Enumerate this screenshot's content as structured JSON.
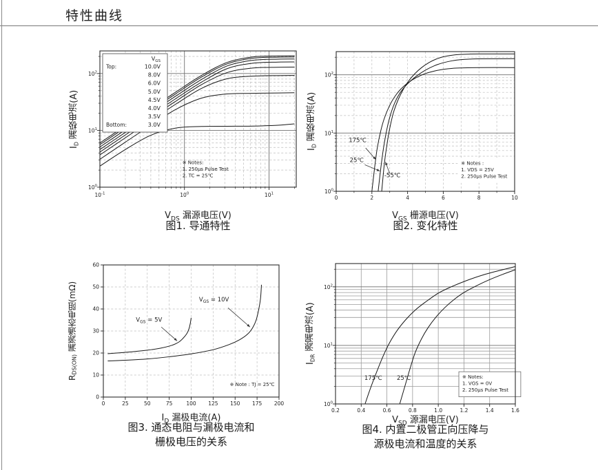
{
  "page": {
    "title": "特性曲线"
  },
  "chart_data": [
    {
      "type": "line",
      "caption1": "图1. 导通特性",
      "caption2": "",
      "xlabel_main": "V",
      "xlabel_sub": "DS",
      "xlabel_rest": " 漏源电压(V)",
      "ylabel_main": "I",
      "ylabel_sub": "D",
      "ylabel_rest": " 漏极电流(A)",
      "x": {
        "type": "log",
        "min": 0.1,
        "max": 21,
        "grid_major": "solid-dark",
        "grid_minor": "dashed"
      },
      "y": {
        "type": "log",
        "min": 1,
        "max": 250,
        "grid_major": "solid-dark",
        "grid_minor": "dashed"
      },
      "legend": {
        "title_main": "V",
        "title_sub": "GS",
        "rows": [
          {
            "prefix": "Top:",
            "value": "10.0V"
          },
          {
            "prefix": "",
            "value": "8.0V"
          },
          {
            "prefix": "",
            "value": "6.0V"
          },
          {
            "prefix": "",
            "value": "5.0V"
          },
          {
            "prefix": "",
            "value": "4.5V"
          },
          {
            "prefix": "",
            "value": "4.0V"
          },
          {
            "prefix": "",
            "value": "3.5V"
          },
          {
            "prefix": "Bottom:",
            "value": "3.0V"
          }
        ]
      },
      "notes": {
        "fx": 0.42,
        "fy": 0.8,
        "whitebg": false,
        "boxed": false,
        "lines": [
          "※ Notes:",
          "1. 250μs Pulse Test",
          "2. TC = 25℃"
        ]
      },
      "annotations": [],
      "series": [
        {
          "name": "VGS = 10.0V",
          "points": [
            [
              0.1,
              6.0
            ],
            [
              0.2,
              12
            ],
            [
              0.4,
              24
            ],
            [
              0.8,
              47.8
            ],
            [
              1.6,
              93
            ],
            [
              3.2,
              157
            ],
            [
              6.4,
              196
            ],
            [
              12.8,
              204
            ],
            [
              20,
              205
            ]
          ]
        },
        {
          "name": "VGS = 8.0V",
          "points": [
            [
              0.1,
              5.6
            ],
            [
              0.2,
              11.2
            ],
            [
              0.4,
              22.4
            ],
            [
              0.8,
              44.6
            ],
            [
              1.6,
              87
            ],
            [
              3.2,
              148
            ],
            [
              6.4,
              186
            ],
            [
              12.8,
              194
            ],
            [
              20,
              195
            ]
          ]
        },
        {
          "name": "VGS = 6.0V",
          "points": [
            [
              0.1,
              5.1
            ],
            [
              0.2,
              10.2
            ],
            [
              0.4,
              20.4
            ],
            [
              0.8,
              40.6
            ],
            [
              1.6,
              79
            ],
            [
              3.2,
              136
            ],
            [
              6.4,
              171
            ],
            [
              12.8,
              179
            ],
            [
              20,
              180
            ]
          ]
        },
        {
          "name": "VGS = 5.0V",
          "points": [
            [
              0.1,
              4.6
            ],
            [
              0.2,
              9.2
            ],
            [
              0.4,
              18.4
            ],
            [
              0.8,
              36.6
            ],
            [
              1.6,
              71
            ],
            [
              3.2,
              122
            ],
            [
              6.4,
              152
            ],
            [
              12.8,
              159
            ],
            [
              20,
              160
            ]
          ]
        },
        {
          "name": "VGS = 4.5V",
          "points": [
            [
              0.1,
              4.15
            ],
            [
              0.2,
              8.3
            ],
            [
              0.4,
              16.6
            ],
            [
              0.8,
              33
            ],
            [
              1.6,
              64
            ],
            [
              3.2,
              104
            ],
            [
              6.4,
              125
            ],
            [
              12.8,
              129
            ],
            [
              20,
              130
            ]
          ]
        },
        {
          "name": "VGS = 4.0V",
          "points": [
            [
              0.1,
              3.7
            ],
            [
              0.2,
              7.4
            ],
            [
              0.4,
              14.8
            ],
            [
              0.8,
              29.3
            ],
            [
              1.6,
              55
            ],
            [
              3.2,
              81
            ],
            [
              6.4,
              90
            ],
            [
              12.8,
              92
            ],
            [
              20,
              92.5
            ]
          ]
        },
        {
          "name": "VGS = 3.5V",
          "points": [
            [
              0.1,
              3.1
            ],
            [
              0.2,
              6.2
            ],
            [
              0.4,
              12.3
            ],
            [
              0.8,
              23.6
            ],
            [
              1.6,
              37
            ],
            [
              3.2,
              43.7
            ],
            [
              6.4,
              44.8
            ],
            [
              12.8,
              45.5
            ],
            [
              20,
              46
            ]
          ]
        },
        {
          "name": "VGS = 3.0V",
          "points": [
            [
              0.1,
              2.35
            ],
            [
              0.2,
              4.6
            ],
            [
              0.4,
              8.2
            ],
            [
              0.8,
              11
            ],
            [
              1.6,
              11.7
            ],
            [
              3.2,
              11.8
            ],
            [
              6.4,
              11.9
            ],
            [
              12.8,
              12.3
            ],
            [
              20,
              13
            ]
          ]
        }
      ]
    },
    {
      "type": "line",
      "caption1": "图2. 变化特性",
      "caption2": "",
      "xlabel_main": "V",
      "xlabel_sub": "GS",
      "xlabel_rest": " 栅源电压(V)",
      "ylabel_main": "I",
      "ylabel_sub": "D",
      "ylabel_rest": " 漏极电流(A)",
      "x": {
        "type": "linear",
        "min": 0,
        "max": 10,
        "major_step": 2,
        "minor_step": 1,
        "decimals": 0,
        "grid_major": "dashed",
        "grid_minor": "dashed"
      },
      "y": {
        "type": "log",
        "min": 1,
        "max": 250,
        "grid_major": "solid-dark",
        "grid_minor": "dashed"
      },
      "notes": {
        "fx": 0.7,
        "fy": 0.78,
        "whitebg": true,
        "boxed": false,
        "lines": [
          "※ Notes :",
          "1. VDS = 25V",
          "2. 250μs Pulse Test"
        ]
      },
      "annotations": [
        {
          "main": "175℃",
          "sub": "",
          "rest": "",
          "fx": 0.12,
          "fy": 0.648,
          "arrow": [
            0.165,
            0.69,
            0.222,
            0.773
          ]
        },
        {
          "main": "25℃",
          "sub": "",
          "rest": "",
          "fx": 0.115,
          "fy": 0.79,
          "arrow": [
            0.16,
            0.81,
            0.245,
            0.855
          ]
        },
        {
          "main": "-55℃",
          "sub": "",
          "rest": "",
          "fx": 0.315,
          "fy": 0.9,
          "arrow": [
            0.3,
            0.873,
            0.276,
            0.79
          ]
        }
      ],
      "series": [
        {
          "name": "175℃",
          "points": [
            [
              2.0,
              1
            ],
            [
              2.15,
              2.5
            ],
            [
              2.3,
              5.5
            ],
            [
              2.5,
              11
            ],
            [
              2.7,
              18
            ],
            [
              3.0,
              30
            ],
            [
              3.3,
              43
            ],
            [
              3.6,
              56
            ],
            [
              4.0,
              72
            ],
            [
              4.5,
              90
            ],
            [
              5.0,
              105
            ],
            [
              5.5,
              116
            ],
            [
              6.0,
              124
            ],
            [
              6.5,
              129
            ],
            [
              7.0,
              131
            ],
            [
              8.0,
              133
            ],
            [
              10,
              133
            ]
          ]
        },
        {
          "name": "25℃",
          "points": [
            [
              2.35,
              1
            ],
            [
              2.5,
              2.5
            ],
            [
              2.65,
              5.5
            ],
            [
              2.85,
              12
            ],
            [
              3.05,
              21
            ],
            [
              3.3,
              34
            ],
            [
              3.6,
              50
            ],
            [
              4.0,
              70
            ],
            [
              4.5,
              95
            ],
            [
              5.0,
              120
            ],
            [
              5.5,
              143
            ],
            [
              6.0,
              161
            ],
            [
              6.5,
              174
            ],
            [
              7.0,
              182
            ],
            [
              7.5,
              186
            ],
            [
              8.0,
              188
            ],
            [
              10,
              189
            ]
          ]
        },
        {
          "name": "-55℃",
          "points": [
            [
              2.55,
              1
            ],
            [
              2.7,
              3
            ],
            [
              2.85,
              6.5
            ],
            [
              3.0,
              12
            ],
            [
              3.2,
              22
            ],
            [
              3.45,
              36
            ],
            [
              3.7,
              52
            ],
            [
              4.0,
              74
            ],
            [
              4.4,
              104
            ],
            [
              4.8,
              134
            ],
            [
              5.2,
              162
            ],
            [
              5.6,
              186
            ],
            [
              6.0,
              204
            ],
            [
              6.5,
              217
            ],
            [
              7.0,
              224
            ],
            [
              7.5,
              227
            ],
            [
              8.0,
              228
            ],
            [
              10,
              228
            ]
          ]
        }
      ]
    },
    {
      "type": "line",
      "caption1": "图3. 通态电阻与漏极电流和",
      "caption2": "栅极电压的关系",
      "xlabel_main": "I",
      "xlabel_sub": "D",
      "xlabel_rest": " 漏极电流(A)",
      "ylabel_main": "R",
      "ylabel_sub": "DS(ON)",
      "ylabel_rest": " 漏源通态电阻(mΩ)",
      "x": {
        "type": "linear",
        "min": 0,
        "max": 200,
        "major_step": 25,
        "decimals": 0,
        "grid_major": "dashed"
      },
      "y": {
        "type": "linear",
        "min": 0,
        "max": 60,
        "major_step": 10,
        "decimals": 0,
        "grid_major": "dashed"
      },
      "notes": {
        "fx": 0.72,
        "fy": 0.885,
        "whitebg": false,
        "boxed": false,
        "lines": [
          "※ Note : TJ = 25℃"
        ]
      },
      "annotations": [
        {
          "main": "V",
          "sub": "GS",
          "rest": " = 5V",
          "fx": 0.26,
          "fy": 0.43,
          "arrow": [
            0.33,
            0.47,
            0.42,
            0.575
          ]
        },
        {
          "main": "V",
          "sub": "GS",
          "rest": " = 10V",
          "fx": 0.63,
          "fy": 0.275,
          "arrow": [
            0.71,
            0.325,
            0.835,
            0.47
          ]
        }
      ],
      "series": [
        {
          "name": "VGS = 5V",
          "points": [
            [
              5,
              19.7
            ],
            [
              25,
              20.3
            ],
            [
              50,
              21.3
            ],
            [
              65,
              22.2
            ],
            [
              78,
              23.5
            ],
            [
              86,
              25
            ],
            [
              91,
              26.8
            ],
            [
              95,
              28.8
            ],
            [
              97.5,
              31
            ],
            [
              99,
              33.5
            ],
            [
              100,
              36
            ]
          ]
        },
        {
          "name": "VGS = 10V",
          "points": [
            [
              5,
              16.4
            ],
            [
              25,
              16.7
            ],
            [
              50,
              17.3
            ],
            [
              75,
              18.3
            ],
            [
              100,
              19.6
            ],
            [
              125,
              21.5
            ],
            [
              143,
              23.8
            ],
            [
              155,
              26
            ],
            [
              164,
              28.5
            ],
            [
              170,
              31.5
            ],
            [
              174,
              35
            ],
            [
              177,
              40
            ],
            [
              179,
              45
            ],
            [
              180,
              51
            ]
          ]
        }
      ]
    },
    {
      "type": "line",
      "caption1": "图4. 内置二极管正向压降与",
      "caption2": "源极电流和温度的关系",
      "xlabel_main": "V",
      "xlabel_sub": "SD",
      "xlabel_rest": " 源漏电压(V)",
      "ylabel_main": "I",
      "ylabel_sub": "DR",
      "ylabel_rest": " 源漏电流(A)",
      "x": {
        "type": "linear",
        "min": 0.2,
        "max": 1.6,
        "major_step": 0.2,
        "decimals": 1,
        "grid_major": "solid"
      },
      "y": {
        "type": "log",
        "min": 1,
        "max": 250,
        "grid_major": "solid-dark",
        "grid_minor": "solid"
      },
      "notes": {
        "fx": 0.705,
        "fy": 0.79,
        "whitebg": true,
        "boxed": true,
        "lines": [
          "※ Notes:",
          "1. VGS = 0V",
          "2. 250μs Pulse Test"
        ]
      },
      "annotations": [
        {
          "main": "175℃",
          "sub": "",
          "rest": "",
          "fx": 0.21,
          "fy": 0.828
        },
        {
          "main": "25℃",
          "sub": "",
          "rest": "",
          "fx": 0.38,
          "fy": 0.828
        }
      ],
      "series": [
        {
          "name": "175℃",
          "points": [
            [
              0.43,
              1
            ],
            [
              0.47,
              1.8
            ],
            [
              0.52,
              3.5
            ],
            [
              0.57,
              6.5
            ],
            [
              0.62,
              11
            ],
            [
              0.68,
              18
            ],
            [
              0.75,
              28
            ],
            [
              0.82,
              40
            ],
            [
              0.9,
              55
            ],
            [
              1.0,
              78
            ],
            [
              1.1,
              100
            ],
            [
              1.22,
              128
            ],
            [
              1.35,
              160
            ],
            [
              1.5,
              196
            ],
            [
              1.6,
              222
            ]
          ]
        },
        {
          "name": "25℃",
          "points": [
            [
              0.7,
              1
            ],
            [
              0.74,
              2
            ],
            [
              0.78,
              4
            ],
            [
              0.82,
              7.5
            ],
            [
              0.87,
              13
            ],
            [
              0.92,
              20
            ],
            [
              0.98,
              30
            ],
            [
              1.05,
              44
            ],
            [
              1.12,
              60
            ],
            [
              1.2,
              80
            ],
            [
              1.3,
              105
            ],
            [
              1.4,
              133
            ],
            [
              1.5,
              163
            ],
            [
              1.6,
              196
            ]
          ]
        }
      ]
    }
  ]
}
